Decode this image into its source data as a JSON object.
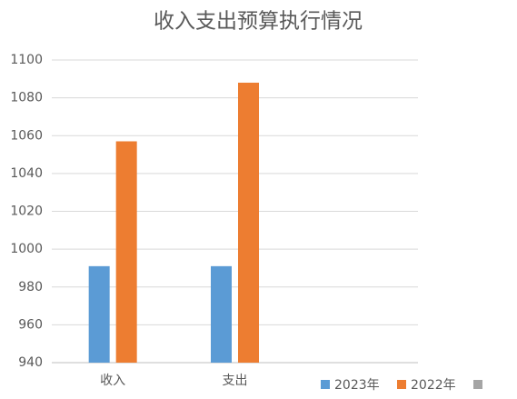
{
  "chart_data": {
    "type": "bar",
    "title": "收入支出预算执行情况",
    "categories": [
      "收入",
      "支出",
      null
    ],
    "series": [
      {
        "name": "2023年",
        "color": "#5b9bd5",
        "values": [
          991,
          991,
          null
        ]
      },
      {
        "name": "2022年",
        "color": "#ed7d31",
        "values": [
          1057,
          1088,
          null
        ]
      },
      {
        "name": null,
        "color": "#a5a5a5",
        "values": [
          null,
          null,
          null
        ]
      }
    ],
    "ylim": [
      940,
      1100
    ],
    "yticks": [
      940,
      960,
      980,
      1000,
      1020,
      1040,
      1060,
      1080,
      1100
    ],
    "grid": true,
    "legend": "bottom"
  }
}
